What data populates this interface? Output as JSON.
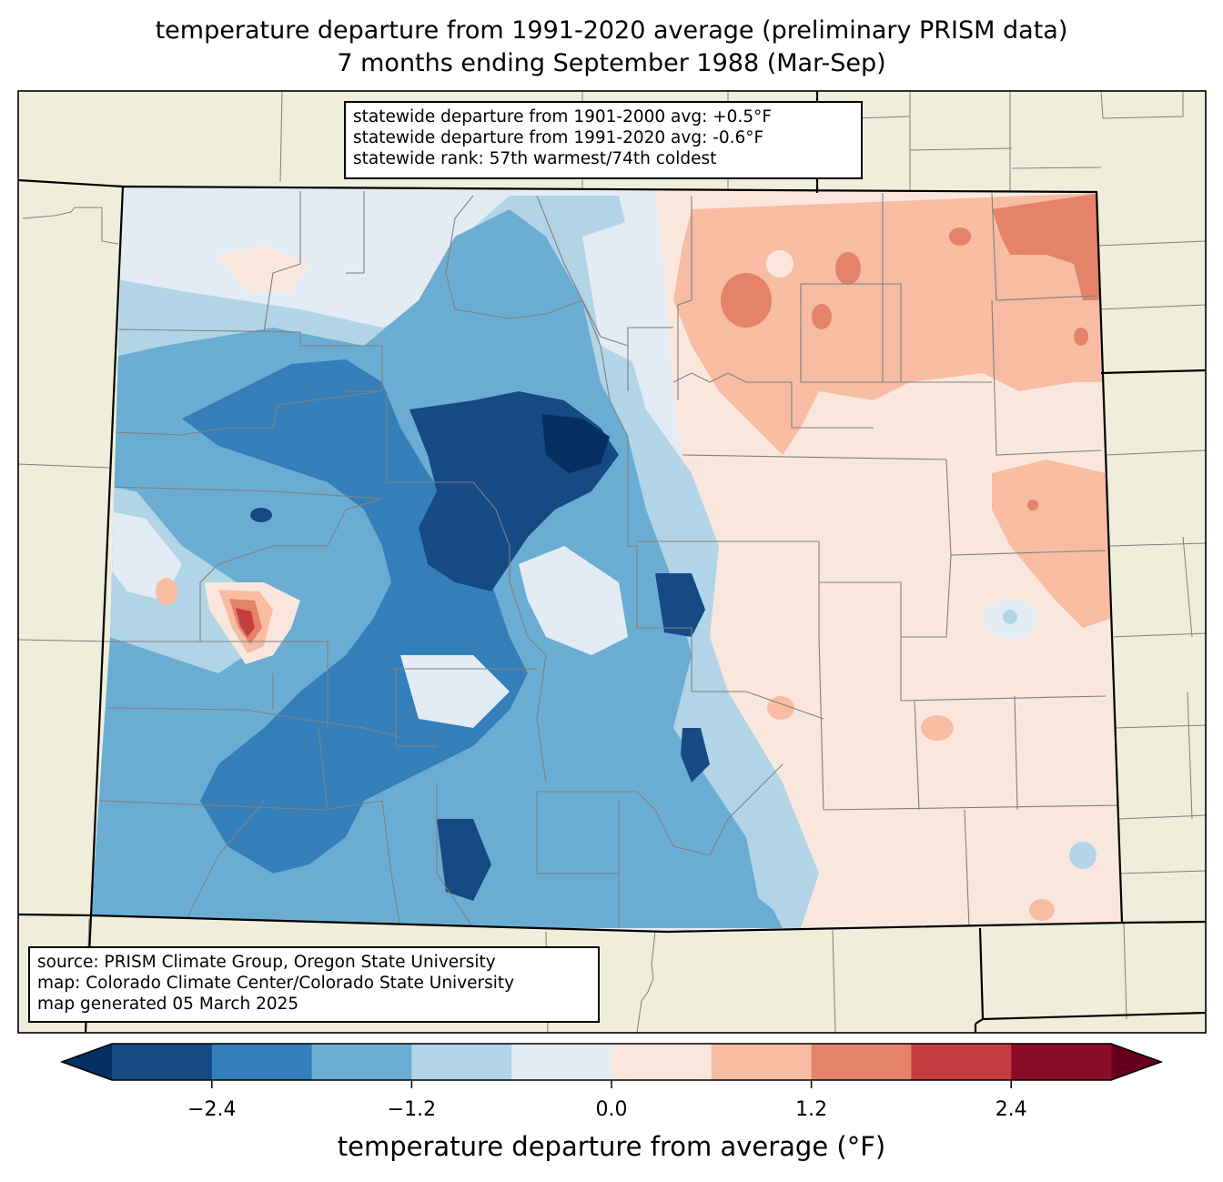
{
  "title": {
    "line1": "temperature departure from 1991-2020 average (preliminary PRISM data)",
    "line2": "7 months ending September 1988 (Mar-Sep)"
  },
  "stats": {
    "line1": "statewide departure from 1901-2000 avg: +0.5°F",
    "line2": "statewide departure from 1991-2020 avg: -0.6°F",
    "line3": "statewide rank: 57th warmest/74th coldest"
  },
  "credits": {
    "line1": "source: PRISM Climate Group, Oregon State University",
    "line2": "map: Colorado Climate Center/Colorado State University",
    "line3": "map generated 05 March 2025"
  },
  "colorbar": {
    "label": "temperature departure from average (°F)",
    "levels": [
      -3.0,
      -2.4,
      -1.8,
      -1.2,
      -0.6,
      0.0,
      0.6,
      1.2,
      1.8,
      2.4,
      3.0
    ],
    "colors": [
      "#164a85",
      "#347fba",
      "#6badd2",
      "#b2d4e7",
      "#e3ecf4",
      "#f9e7de",
      "#f7bca2",
      "#e4826a",
      "#c43d3f",
      "#8b0c26"
    ],
    "under_color": "#053061",
    "over_color": "#67001f",
    "ticks": [
      {
        "value": -2.4,
        "label": "−2.4"
      },
      {
        "value": -1.2,
        "label": "−1.2"
      },
      {
        "value": 0.0,
        "label": "0.0"
      },
      {
        "value": 1.2,
        "label": "1.2"
      },
      {
        "value": 2.4,
        "label": "2.4"
      }
    ]
  },
  "colors": {
    "land_background": "#efeedb",
    "state_border": "#000000",
    "county_border": "#808080"
  }
}
